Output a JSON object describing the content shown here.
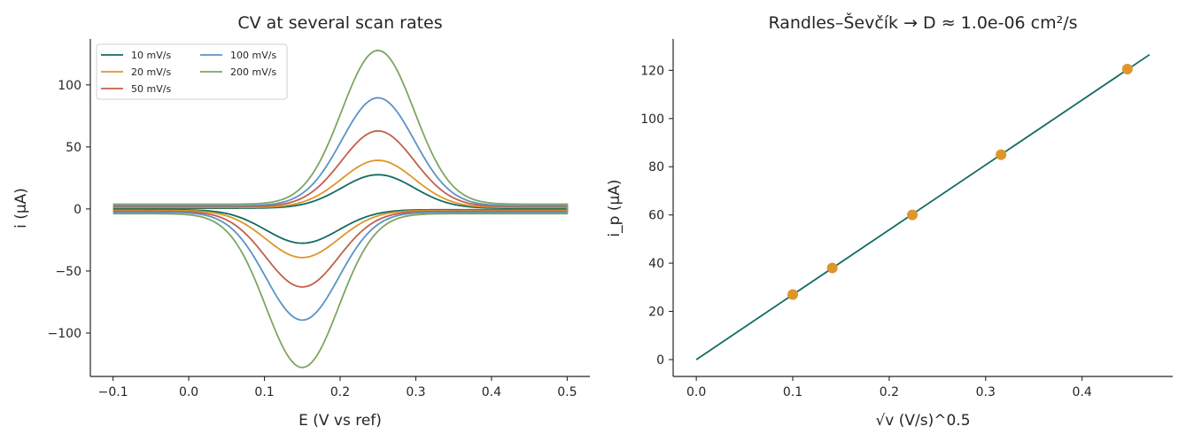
{
  "chart_data": [
    {
      "type": "line",
      "title": "CV at several scan rates",
      "xlabel": "E (V vs ref)",
      "ylabel": "i (µA)",
      "xlim": [
        -0.13,
        0.53
      ],
      "ylim": [
        -135,
        137
      ],
      "xticks": [
        -0.1,
        0.0,
        0.1,
        0.2,
        0.3,
        0.4,
        0.5
      ],
      "xtick_labels": [
        "−0.1",
        "0.0",
        "0.1",
        "0.2",
        "0.3",
        "0.4",
        "0.5"
      ],
      "yticks": [
        -100,
        -50,
        0,
        50,
        100
      ],
      "ytick_labels": [
        "−100",
        "−50",
        "0",
        "50",
        "100"
      ],
      "grid": false,
      "legend_position": "top-left",
      "legend_columns": 2,
      "e_range": [
        -0.1,
        0.5
      ],
      "anodic_peak_E": 0.25,
      "cathodic_peak_E": 0.15,
      "peak_width_V": 0.048,
      "series": [
        {
          "name": "10 mV/s",
          "color": "#136b63",
          "peak_current": 27,
          "baseline": 0.6
        },
        {
          "name": "20 mV/s",
          "color": "#dd962c",
          "peak_current": 38,
          "baseline": 1.2
        },
        {
          "name": "50 mV/s",
          "color": "#c2604a",
          "peak_current": 61,
          "baseline": 1.9
        },
        {
          "name": "100 mV/s",
          "color": "#5b93c4",
          "peak_current": 87,
          "baseline": 2.6
        },
        {
          "name": "200 mV/s",
          "color": "#7da663",
          "peak_current": 124,
          "baseline": 3.8
        }
      ]
    },
    {
      "type": "scatter",
      "title": "Randles–Ševčík → D ≈ 1.0e-06 cm²/s",
      "xlabel": "√v  (V/s)^0.5",
      "ylabel": "i_p (µA)",
      "xlim": [
        -0.024,
        0.494
      ],
      "ylim": [
        -7,
        133
      ],
      "xticks": [
        0.0,
        0.1,
        0.2,
        0.3,
        0.4
      ],
      "xtick_labels": [
        "0.0",
        "0.1",
        "0.2",
        "0.3",
        "0.4"
      ],
      "yticks": [
        0,
        20,
        40,
        60,
        80,
        100,
        120
      ],
      "ytick_labels": [
        "0",
        "20",
        "40",
        "60",
        "80",
        "100",
        "120"
      ],
      "grid": false,
      "points": {
        "color": "#dd962c",
        "x": [
          0.1,
          0.141,
          0.224,
          0.316,
          0.447
        ],
        "y": [
          27,
          38,
          60,
          85,
          120.5
        ]
      },
      "fit_line": {
        "color": "#136b63",
        "x": [
          0,
          0.47
        ],
        "y": [
          0,
          126.5
        ]
      }
    }
  ]
}
